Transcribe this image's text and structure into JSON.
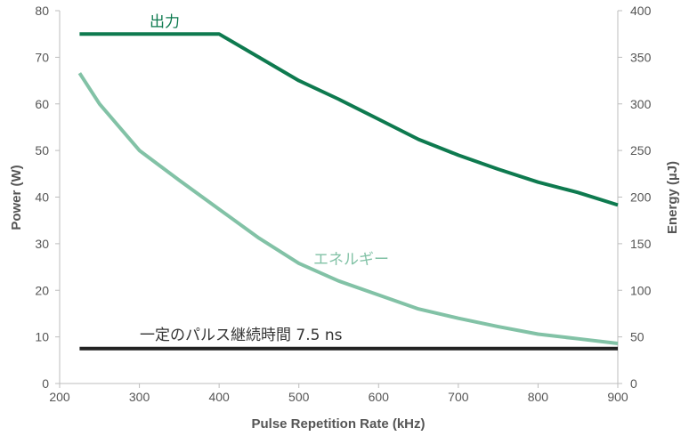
{
  "chart_data": {
    "type": "line",
    "xlabel": "Pulse Repetition Rate (kHz)",
    "ylabel": "Power (W)",
    "y2label": "Energy (µJ)",
    "xlim": [
      200,
      900
    ],
    "ylim": [
      0,
      80
    ],
    "y2lim": [
      0,
      400
    ],
    "x_ticks": [
      200,
      300,
      400,
      500,
      600,
      700,
      800,
      900
    ],
    "y_ticks": [
      0,
      10,
      20,
      30,
      40,
      50,
      60,
      70,
      80
    ],
    "y2_ticks": [
      0,
      50,
      100,
      150,
      200,
      250,
      300,
      350,
      400
    ],
    "grid": false,
    "series": [
      {
        "name": "出力",
        "axis": "left",
        "color": "#0e7a4f",
        "points": [
          [
            225,
            75
          ],
          [
            400,
            75
          ],
          [
            450,
            70
          ],
          [
            500,
            65
          ],
          [
            550,
            61
          ],
          [
            600,
            56.7
          ],
          [
            650,
            52.4
          ],
          [
            700,
            49
          ],
          [
            750,
            46
          ],
          [
            800,
            43.2
          ],
          [
            850,
            41
          ],
          [
            900,
            38.3
          ]
        ]
      },
      {
        "name": "エネルギー",
        "axis": "right",
        "color": "#82c2a6",
        "points": [
          [
            225,
            333
          ],
          [
            250,
            300
          ],
          [
            300,
            250
          ],
          [
            350,
            218
          ],
          [
            400,
            187
          ],
          [
            450,
            156
          ],
          [
            500,
            129
          ],
          [
            550,
            110
          ],
          [
            600,
            95
          ],
          [
            650,
            80
          ],
          [
            700,
            70
          ],
          [
            750,
            61
          ],
          [
            800,
            53
          ],
          [
            850,
            48
          ],
          [
            900,
            43
          ]
        ]
      },
      {
        "name": "一定のパルス継続時間 7.5 ns",
        "axis": "left",
        "color": "#222222",
        "points": [
          [
            225,
            7.5
          ],
          [
            900,
            7.5
          ]
        ]
      }
    ]
  }
}
